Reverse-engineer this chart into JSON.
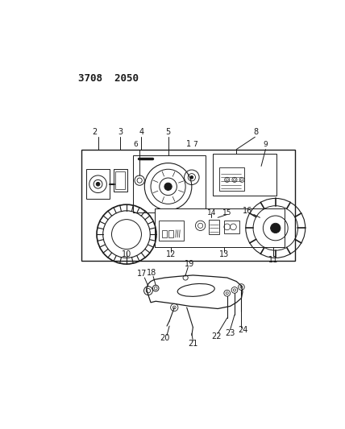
{
  "title": "3708 2050",
  "bg_color": "#ffffff",
  "line_color": "#1a1a1a",
  "fig_width": 4.28,
  "fig_height": 5.33,
  "dpi": 100
}
